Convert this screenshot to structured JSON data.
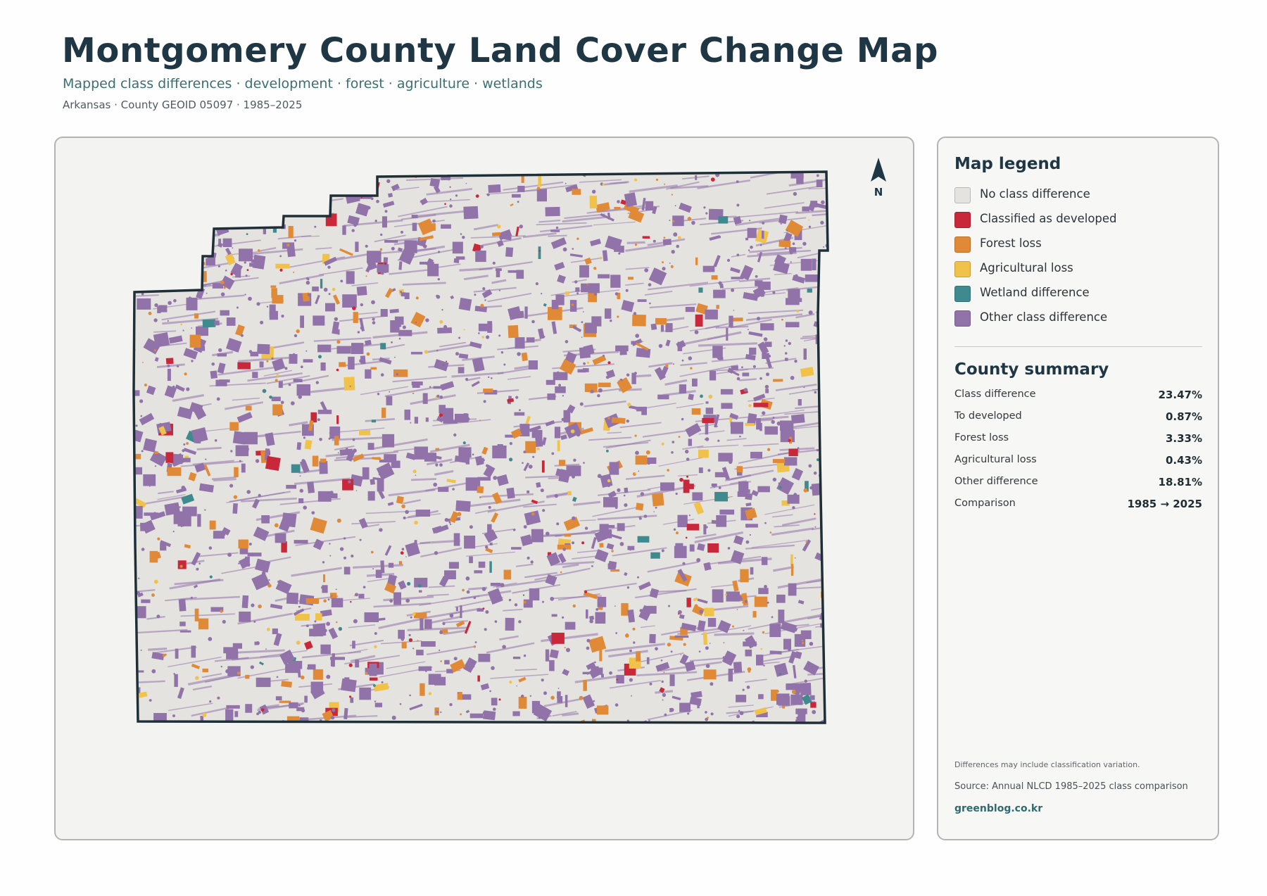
{
  "header": {
    "title": "Montgomery County Land Cover Change Map",
    "subtitle": "Mapped class differences · development · forest · agriculture · wetlands",
    "meta": "Arkansas · County GEOID 05097 · 1985–2025"
  },
  "map": {
    "north_label": "N",
    "background_color": "#e4e3df",
    "boundary_color": "#1f2f38"
  },
  "legend": {
    "title": "Map legend",
    "items": [
      {
        "label": "No class difference",
        "color": "#e4e3df"
      },
      {
        "label": "Classified as developed",
        "color": "#c9283a"
      },
      {
        "label": "Forest loss",
        "color": "#e08a37"
      },
      {
        "label": "Agricultural loss",
        "color": "#f1c24a"
      },
      {
        "label": "Wetland difference",
        "color": "#3f8a8f"
      },
      {
        "label": "Other class difference",
        "color": "#9173aa"
      }
    ]
  },
  "summary": {
    "title": "County summary",
    "rows": [
      {
        "label": "Class difference",
        "value": "23.47%"
      },
      {
        "label": "To developed",
        "value": "0.87%"
      },
      {
        "label": "Forest loss",
        "value": "3.33%"
      },
      {
        "label": "Agricultural loss",
        "value": "0.43%"
      },
      {
        "label": "Other difference",
        "value": "18.81%"
      },
      {
        "label": "Comparison",
        "value": "1985 → 2025"
      }
    ]
  },
  "footer": {
    "note": "Differences may include classification variation.",
    "source": "Source: Annual NLCD 1985–2025 class comparison",
    "site": "greenblog.co.kr"
  }
}
